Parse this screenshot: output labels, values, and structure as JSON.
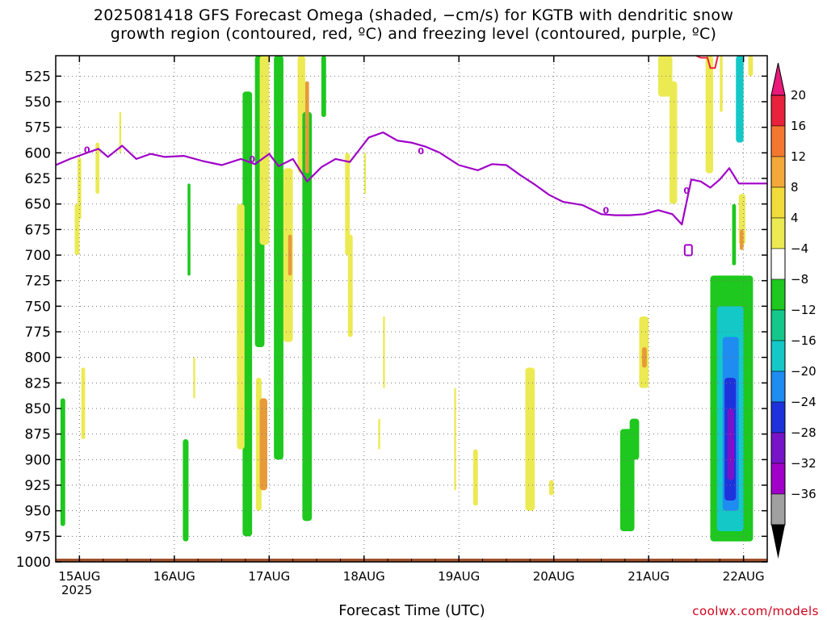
{
  "title": {
    "line1": "2025081418 GFS Forecast Omega (shaded, −cm/s) for KGTB with dendritic snow",
    "line2": "growth region (contoured, red, ºC) and freezing level (contoured, purple, ºC)"
  },
  "xlabel": "Forecast Time (UTC)",
  "year_label": "2025",
  "credit": "coolwx.com/models",
  "chart_data": {
    "type": "heatmap",
    "y_axis": {
      "label": "",
      "unit": "hPa",
      "inverted": true,
      "ticks": [
        525,
        550,
        575,
        600,
        625,
        650,
        675,
        700,
        725,
        750,
        775,
        800,
        825,
        850,
        875,
        900,
        925,
        950,
        975,
        1000
      ],
      "range": [
        1000,
        505
      ]
    },
    "x_axis": {
      "ticks": [
        "15AUG",
        "16AUG",
        "17AUG",
        "18AUG",
        "19AUG",
        "20AUG",
        "21AUG",
        "22AUG"
      ],
      "range_days": [
        14.75,
        22.25
      ]
    },
    "grid": true,
    "colorbar": {
      "labels": [
        "20",
        "16",
        "12",
        "8",
        "4",
        "−4",
        "−8",
        "−12",
        "−16",
        "−20",
        "−24",
        "−28",
        "−32",
        "−36"
      ],
      "colors": [
        "#e8213c",
        "#f3782f",
        "#f3a83a",
        "#f2dc3b",
        "#ecea52",
        "#ffffff",
        "#1ec81e",
        "#14c88c",
        "#14c8c8",
        "#1e8cf0",
        "#1e32dc",
        "#7814c8",
        "#a000c8",
        "#a0a0a0"
      ],
      "top_arrow_color": "#e8197a",
      "bottom_arrow_color": "#000000"
    },
    "freezing_level": {
      "name": "freezing level",
      "color": "#a000c8",
      "contour_label": "0",
      "points": [
        [
          14.75,
          612
        ],
        [
          14.9,
          606
        ],
        [
          15.05,
          601
        ],
        [
          15.2,
          596
        ],
        [
          15.3,
          604
        ],
        [
          15.45,
          593
        ],
        [
          15.6,
          606
        ],
        [
          15.75,
          601
        ],
        [
          15.9,
          604
        ],
        [
          16.1,
          603
        ],
        [
          16.3,
          608
        ],
        [
          16.5,
          612
        ],
        [
          16.7,
          606
        ],
        [
          16.85,
          611
        ],
        [
          17.0,
          601
        ],
        [
          17.1,
          613
        ],
        [
          17.25,
          606
        ],
        [
          17.4,
          628
        ],
        [
          17.55,
          614
        ],
        [
          17.7,
          606
        ],
        [
          17.85,
          609
        ],
        [
          17.95,
          597
        ],
        [
          18.05,
          585
        ],
        [
          18.2,
          580
        ],
        [
          18.35,
          588
        ],
        [
          18.5,
          590
        ],
        [
          18.65,
          594
        ],
        [
          18.8,
          600
        ],
        [
          19.0,
          612
        ],
        [
          19.2,
          617
        ],
        [
          19.35,
          611
        ],
        [
          19.5,
          612
        ],
        [
          19.65,
          622
        ],
        [
          19.8,
          631
        ],
        [
          19.95,
          641
        ],
        [
          20.1,
          648
        ],
        [
          20.3,
          651
        ],
        [
          20.5,
          660
        ],
        [
          20.65,
          661
        ],
        [
          20.8,
          661
        ],
        [
          20.95,
          660
        ],
        [
          21.1,
          656
        ],
        [
          21.25,
          660
        ],
        [
          21.35,
          670
        ],
        [
          21.45,
          626
        ],
        [
          21.55,
          628
        ],
        [
          21.65,
          634
        ],
        [
          21.75,
          626
        ],
        [
          21.85,
          615
        ],
        [
          21.95,
          630
        ],
        [
          22.1,
          630
        ],
        [
          22.25,
          630
        ]
      ]
    },
    "dgz_color": "#e8213c",
    "omega_cells": [
      [
        14.98,
        15.02,
        605,
        665,
        "y"
      ],
      [
        14.95,
        15.0,
        650,
        700,
        "y"
      ],
      [
        15.17,
        15.21,
        590,
        640,
        "y"
      ],
      [
        15.42,
        15.44,
        560,
        600,
        "y"
      ],
      [
        15.02,
        15.06,
        810,
        880,
        "y"
      ],
      [
        14.8,
        14.85,
        840,
        965,
        "g"
      ],
      [
        16.14,
        16.17,
        630,
        720,
        "g"
      ],
      [
        16.09,
        16.15,
        880,
        980,
        "g"
      ],
      [
        16.2,
        16.22,
        800,
        840,
        "y"
      ],
      [
        16.72,
        16.82,
        540,
        975,
        "g"
      ],
      [
        16.66,
        16.74,
        650,
        890,
        "y"
      ],
      [
        16.85,
        16.95,
        505,
        790,
        "g"
      ],
      [
        16.86,
        16.92,
        820,
        950,
        "y"
      ],
      [
        16.9,
        17.0,
        505,
        690,
        "y"
      ],
      [
        16.9,
        16.98,
        840,
        930,
        "o"
      ],
      [
        17.05,
        17.15,
        505,
        900,
        "g"
      ],
      [
        17.15,
        17.25,
        615,
        785,
        "y"
      ],
      [
        17.2,
        17.24,
        680,
        720,
        "o"
      ],
      [
        17.3,
        17.38,
        505,
        620,
        "y"
      ],
      [
        17.35,
        17.45,
        560,
        960,
        "g"
      ],
      [
        17.38,
        17.42,
        530,
        620,
        "o"
      ],
      [
        17.55,
        17.6,
        505,
        565,
        "g"
      ],
      [
        17.8,
        17.85,
        600,
        700,
        "y"
      ],
      [
        17.83,
        17.88,
        680,
        780,
        "y"
      ],
      [
        18.0,
        18.02,
        600,
        640,
        "y"
      ],
      [
        18.2,
        18.22,
        760,
        830,
        "y"
      ],
      [
        18.15,
        18.17,
        860,
        890,
        "y"
      ],
      [
        18.95,
        18.97,
        830,
        930,
        "y"
      ],
      [
        19.15,
        19.2,
        890,
        945,
        "y"
      ],
      [
        19.7,
        19.8,
        810,
        950,
        "y"
      ],
      [
        19.95,
        20.0,
        920,
        935,
        "y"
      ],
      [
        20.9,
        21.0,
        760,
        830,
        "y"
      ],
      [
        20.93,
        20.98,
        790,
        810,
        "o"
      ],
      [
        20.7,
        20.85,
        870,
        970,
        "g"
      ],
      [
        20.8,
        20.9,
        860,
        900,
        "g"
      ],
      [
        21.1,
        21.25,
        505,
        545,
        "y"
      ],
      [
        21.22,
        21.3,
        530,
        650,
        "y"
      ],
      [
        21.6,
        21.68,
        505,
        620,
        "y"
      ],
      [
        21.75,
        21.78,
        505,
        560,
        "y"
      ],
      [
        21.65,
        22.1,
        720,
        980,
        "g"
      ],
      [
        21.72,
        22.0,
        750,
        970,
        "c"
      ],
      [
        21.78,
        21.95,
        780,
        950,
        "b"
      ],
      [
        21.8,
        21.92,
        820,
        940,
        "db"
      ],
      [
        21.83,
        21.9,
        850,
        920,
        "p"
      ],
      [
        21.88,
        21.9,
        880,
        900,
        "dp"
      ],
      [
        21.92,
        22.0,
        505,
        590,
        "c"
      ],
      [
        21.95,
        22.02,
        640,
        690,
        "y"
      ],
      [
        21.96,
        22.0,
        675,
        695,
        "o"
      ],
      [
        21.88,
        21.92,
        650,
        710,
        "g"
      ],
      [
        22.05,
        22.1,
        505,
        525,
        "y"
      ]
    ]
  }
}
